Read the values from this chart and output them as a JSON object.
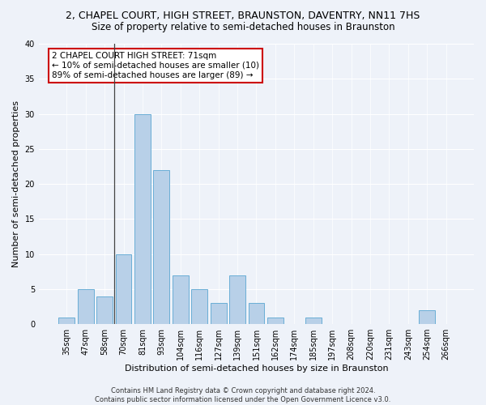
{
  "title": "2, CHAPEL COURT, HIGH STREET, BRAUNSTON, DAVENTRY, NN11 7HS",
  "subtitle": "Size of property relative to semi-detached houses in Braunston",
  "xlabel": "Distribution of semi-detached houses by size in Braunston",
  "ylabel": "Number of semi-detached properties",
  "categories": [
    "35sqm",
    "47sqm",
    "58sqm",
    "70sqm",
    "81sqm",
    "93sqm",
    "104sqm",
    "116sqm",
    "127sqm",
    "139sqm",
    "151sqm",
    "162sqm",
    "174sqm",
    "185sqm",
    "197sqm",
    "208sqm",
    "220sqm",
    "231sqm",
    "243sqm",
    "254sqm",
    "266sqm"
  ],
  "values": [
    1,
    5,
    4,
    10,
    30,
    22,
    7,
    5,
    3,
    7,
    3,
    1,
    0,
    1,
    0,
    0,
    0,
    0,
    0,
    2,
    0
  ],
  "bar_color": "#b8d0e8",
  "bar_edge_color": "#6aaed6",
  "ylim": [
    0,
    40
  ],
  "yticks": [
    0,
    5,
    10,
    15,
    20,
    25,
    30,
    35,
    40
  ],
  "annotation_line1": "2 CHAPEL COURT HIGH STREET: 71sqm",
  "annotation_line2": "← 10% of semi-detached houses are smaller (10)",
  "annotation_line3": "89% of semi-detached houses are larger (89) →",
  "annotation_box_color": "#ffffff",
  "annotation_box_edge": "#cc0000",
  "vline_x": 2.5,
  "footer1": "Contains HM Land Registry data © Crown copyright and database right 2024.",
  "footer2": "Contains public sector information licensed under the Open Government Licence v3.0.",
  "background_color": "#eef2f9",
  "axes_bg_color": "#eef2f9",
  "grid_color": "#ffffff",
  "title_fontsize": 9,
  "subtitle_fontsize": 8.5,
  "tick_fontsize": 7,
  "ylabel_fontsize": 8,
  "xlabel_fontsize": 8,
  "annotation_fontsize": 7.5,
  "footer_fontsize": 6
}
